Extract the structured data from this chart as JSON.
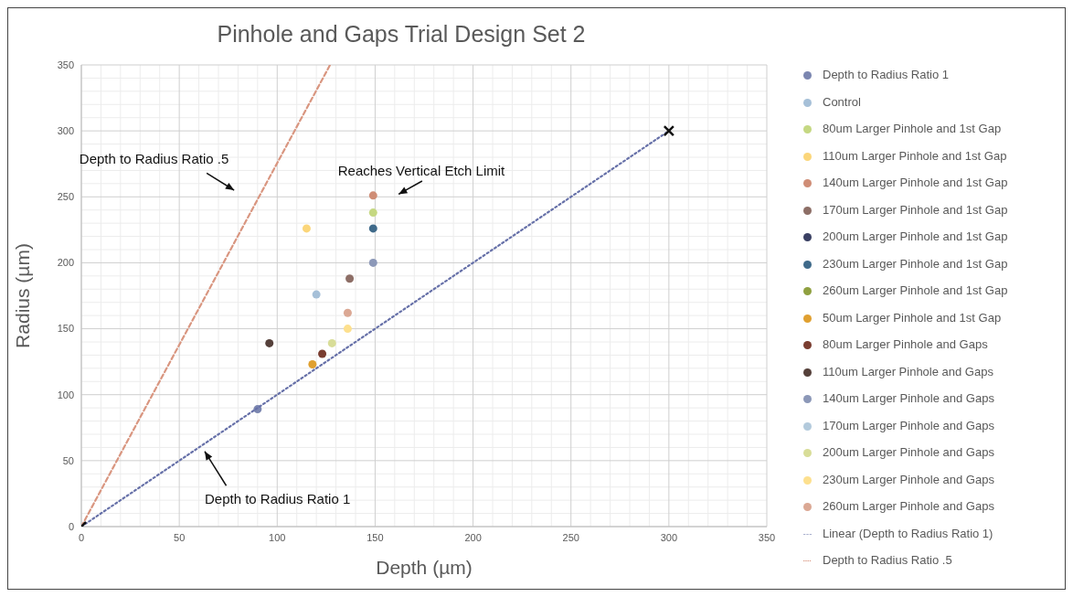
{
  "chart_data": {
    "type": "scatter",
    "title": "Pinhole and Gaps Trial Design Set 2",
    "xlabel": "Depth (µm)",
    "ylabel": "Radius (µm)",
    "xlim": [
      0,
      350
    ],
    "xticks": [
      0,
      50,
      100,
      150,
      200,
      250,
      300,
      350
    ],
    "ylim": [
      0,
      350
    ],
    "yticks": [
      0,
      50,
      100,
      150,
      200,
      250,
      300,
      350
    ],
    "grid": true,
    "legend": "right",
    "marker": "circle",
    "annotations": [
      "Depth to Radius Ratio .5",
      "Reaches Vertical Etch Limit",
      "Depth to Radius Ratio 1"
    ],
    "series": [
      {
        "name": "Depth to Radius Ratio 1",
        "color": "#7b86b0",
        "x": [
          90
        ],
        "values": [
          89
        ]
      },
      {
        "name": "Control",
        "color": "#a6c0d8",
        "x": [
          120
        ],
        "values": [
          176
        ]
      },
      {
        "name": "80um Larger Pinhole and 1st Gap",
        "color": "#c5d882",
        "x": [
          149
        ],
        "values": [
          238
        ]
      },
      {
        "name": "110um Larger Pinhole and 1st Gap",
        "color": "#fbd67a",
        "x": [
          115
        ],
        "values": [
          226
        ]
      },
      {
        "name": "140um Larger Pinhole and 1st Gap",
        "color": "#cf8d76",
        "x": [
          149
        ],
        "values": [
          251
        ]
      },
      {
        "name": "170um Larger Pinhole and 1st Gap",
        "color": "#8d6e66",
        "x": [
          137
        ],
        "values": [
          188
        ]
      },
      {
        "name": "200um Larger Pinhole and 1st Gap",
        "color": "#3a4063",
        "x": [
          null
        ],
        "values": [
          null
        ]
      },
      {
        "name": "230um Larger Pinhole and 1st Gap",
        "color": "#3f6a8a",
        "x": [
          149
        ],
        "values": [
          226
        ]
      },
      {
        "name": "260um Larger Pinhole and 1st Gap",
        "color": "#8fa040",
        "x": [
          null
        ],
        "values": [
          null
        ]
      },
      {
        "name": "50um Larger Pinhole and 1st Gap",
        "color": "#e0a030",
        "x": [
          118
        ],
        "values": [
          123
        ]
      },
      {
        "name": "80um Larger Pinhole and Gaps",
        "color": "#7a3d30",
        "x": [
          123
        ],
        "values": [
          131
        ]
      },
      {
        "name": "110um Larger Pinhole and Gaps",
        "color": "#55403a",
        "x": [
          96
        ],
        "values": [
          139
        ]
      },
      {
        "name": "140um Larger Pinhole and Gaps",
        "color": "#8c98b8",
        "x": [
          149
        ],
        "values": [
          200
        ]
      },
      {
        "name": "170um Larger Pinhole and Gaps",
        "color": "#b3cadc",
        "x": [
          null
        ],
        "values": [
          null
        ]
      },
      {
        "name": "200um Larger Pinhole and Gaps",
        "color": "#d8dd98",
        "x": [
          128
        ],
        "values": [
          139
        ]
      },
      {
        "name": "230um Larger Pinhole and Gaps",
        "color": "#fde08e",
        "x": [
          136
        ],
        "values": [
          150
        ]
      },
      {
        "name": "260um Larger Pinhole and Gaps",
        "color": "#dba894",
        "x": [
          136
        ],
        "values": [
          162
        ]
      },
      {
        "name": "Linear (Depth to Radius Ratio 1)",
        "type": "line",
        "color": "#6670a8",
        "line_style": "dotted",
        "marker": "none",
        "x": [
          0,
          300
        ],
        "values": [
          0,
          300
        ]
      },
      {
        "name": "Depth to Radius Ratio .5",
        "type": "line",
        "color": "#d99680",
        "line_style": "dashed",
        "marker": "none",
        "x": [
          0,
          127
        ],
        "values": [
          0,
          350
        ]
      },
      {
        "color": "#111111",
        "marker": "cross",
        "x": [
          0,
          300
        ],
        "values": [
          0,
          300
        ]
      }
    ]
  }
}
